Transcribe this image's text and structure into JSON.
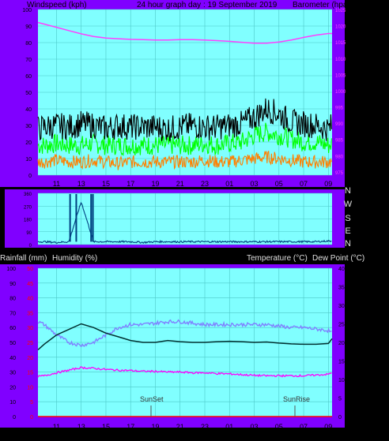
{
  "header": {
    "left_label": "Windspeed (kph)",
    "title": "24 hour graph day : 19 September 2019",
    "right_label": "Barometer (hpa)"
  },
  "colors": {
    "background": "#000000",
    "panel_frame": "#8000ff",
    "plot_bg": "#80ffff",
    "grid": "#4dc8c8",
    "pressure": "#ff40ff",
    "gust": "#000000",
    "wind": "#00ff00",
    "wind_low": "#ff8000",
    "wind_dir": "#004080",
    "rainfall": "#ff0000",
    "humidity": "#8080ff",
    "temperature": "#003030",
    "dewpoint": "#ff00ff"
  },
  "x_ticks": [
    "11",
    "13",
    "15",
    "17",
    "19",
    "21",
    "23",
    "01",
    "03",
    "05",
    "07",
    "09"
  ],
  "direction_labels": [
    "N",
    "W",
    "S",
    "E",
    "N"
  ],
  "dir_ticks": [
    "360",
    "270",
    "180",
    "90",
    "0"
  ],
  "bottom_labels": {
    "rain": "Rainfall (mm)",
    "humidity": "Humidity (%)",
    "temperature": "Temperature (°C)",
    "dewpoint": "Dew Point (°C)"
  },
  "markers": {
    "sunset": "SunSet",
    "sunrise": "SunRise"
  },
  "chart_data": [
    {
      "type": "line",
      "panel": "wind_pressure",
      "x_hours": [
        9.5,
        10,
        11,
        12,
        13,
        14,
        15,
        16,
        17,
        18,
        19,
        20,
        21,
        22,
        23,
        24,
        25,
        26,
        27,
        28,
        29,
        30,
        31,
        32,
        33,
        33.3
      ],
      "x_ticks": [
        "11",
        "13",
        "15",
        "17",
        "19",
        "21",
        "23",
        "01",
        "03",
        "05",
        "07",
        "09"
      ],
      "y_left": {
        "label": "Windspeed (kph)",
        "range": [
          0,
          100
        ],
        "ticks": [
          0,
          10,
          20,
          30,
          40,
          50,
          60,
          70,
          80,
          90,
          100
        ]
      },
      "y_right": {
        "label": "Barometer (hpa)",
        "range": [
          974,
          1025
        ],
        "ticks": [
          975,
          980,
          985,
          990,
          995,
          1000,
          1005,
          1010,
          1015,
          1020,
          1025
        ]
      },
      "series": [
        {
          "name": "Barometer (hpa)",
          "axis": "right",
          "values": [
            1021,
            1020.5,
            1019.5,
            1018.5,
            1017.5,
            1016.7,
            1016.2,
            1016,
            1015.8,
            1015.7,
            1015.6,
            1015.6,
            1015.7,
            1015.7,
            1015.6,
            1015.4,
            1015.2,
            1014.9,
            1014.6,
            1014.6,
            1015,
            1015.6,
            1016.4,
            1017.1,
            1017.6,
            1017.6
          ]
        },
        {
          "axis": "left",
          "values": [
            28,
            29,
            30,
            29,
            31,
            30,
            28,
            30,
            29,
            29,
            29,
            28,
            29,
            30,
            29,
            29,
            30,
            31,
            35,
            40,
            37,
            32,
            31,
            30,
            28,
            30
          ]
        },
        {
          "axis": "left",
          "values": [
            18,
            18,
            19,
            18,
            18,
            19,
            18,
            18,
            18,
            18,
            18,
            18,
            18,
            18,
            19,
            18,
            19,
            20,
            24,
            26,
            24,
            22,
            20,
            20,
            18,
            19
          ]
        },
        {
          "axis": "left",
          "values": [
            8,
            8,
            9,
            8,
            8,
            9,
            8,
            7,
            8,
            8,
            8,
            8,
            8,
            8,
            9,
            8,
            8,
            9,
            10,
            11,
            10,
            9,
            8,
            8,
            8,
            8
          ]
        }
      ]
    },
    {
      "type": "line",
      "panel": "wind_direction",
      "y_range": [
        0,
        360
      ],
      "series": [
        {
          "values": [
            20,
            20,
            15,
            20,
            300,
            20,
            20,
            20,
            20,
            15,
            20,
            20,
            20,
            20,
            20,
            20,
            20,
            20,
            20,
            20,
            20,
            20,
            20,
            20,
            25,
            25
          ]
        }
      ]
    },
    {
      "type": "line",
      "panel": "humidity_temperature",
      "x_hours": [
        9.5,
        10,
        11,
        12,
        13,
        14,
        15,
        16,
        17,
        18,
        19,
        20,
        21,
        22,
        23,
        24,
        25,
        26,
        27,
        28,
        29,
        30,
        31,
        32,
        33,
        33.3
      ],
      "y_left": {
        "label": "Humidity (%)",
        "range": [
          0,
          100
        ],
        "ticks": [
          0,
          10,
          20,
          30,
          40,
          50,
          60,
          70,
          80,
          90,
          100
        ]
      },
      "y_rain": {
        "label": "Rainfall (mm)",
        "range": [
          0,
          50
        ],
        "ticks": [
          0,
          5,
          10,
          15,
          20,
          25,
          30,
          35,
          40,
          45,
          50
        ]
      },
      "y_right": {
        "label": "Temperature (°C)",
        "range": [
          0,
          40
        ],
        "ticks": [
          0,
          5,
          10,
          15,
          20,
          25,
          30,
          35,
          40
        ]
      },
      "series": [
        {
          "name": "Humidity (%)",
          "axis": "left",
          "values": [
            64,
            62,
            55,
            50,
            48,
            50,
            55,
            60,
            62,
            62,
            63,
            64,
            64,
            63,
            62,
            62,
            62,
            62,
            62,
            62,
            61,
            60,
            60,
            59,
            58,
            56
          ]
        },
        {
          "name": "Temperature (°C)",
          "axis": "right",
          "values": [
            18,
            19.5,
            22,
            23.5,
            25,
            24,
            22.5,
            21.5,
            20.5,
            20,
            20,
            20.5,
            20.2,
            20,
            20,
            20.2,
            20.3,
            20.2,
            20,
            20.1,
            19.8,
            19.6,
            19.5,
            19.5,
            19.7,
            21
          ]
        },
        {
          "name": "Dew Point (°C)",
          "axis": "right",
          "values": [
            10.8,
            11,
            11.8,
            12.5,
            13.2,
            13,
            12.7,
            12.5,
            12.4,
            12.2,
            12.2,
            12,
            12,
            11.8,
            11.8,
            11.6,
            11.5,
            11.3,
            11.1,
            11,
            11,
            11,
            11,
            11.2,
            11.4,
            11.8
          ]
        },
        {
          "name": "Rainfall (mm)",
          "axis": "rain",
          "values": [
            0,
            0,
            0,
            0,
            0,
            0,
            0,
            0,
            0,
            0,
            0,
            0,
            0,
            0,
            0,
            0,
            0,
            0,
            0,
            0,
            0,
            0,
            0,
            0,
            0,
            0
          ]
        }
      ]
    }
  ]
}
